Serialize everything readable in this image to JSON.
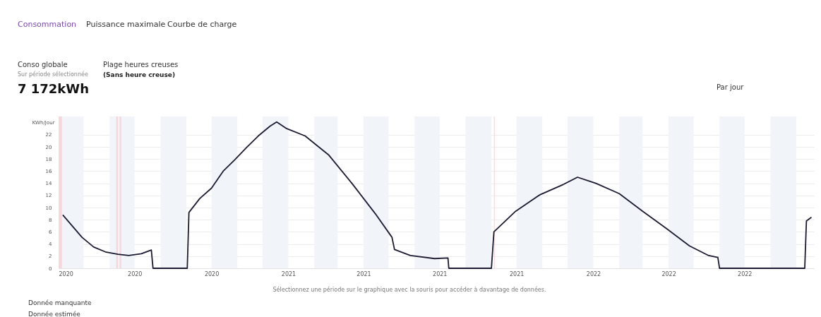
{
  "chart_data": {
    "type": "line",
    "ylabel": "KWh/Jour",
    "annotations": [
      "Consommation",
      "Puissance maximale",
      "Courbe de charge",
      "Conso globale",
      "Sur période sélectionnée",
      "7 172kWh",
      "Plage heures creuses",
      "(Sans heure creuse)",
      "Par jour",
      "Sélectionnez une période sur le graphique avec la souris pour accéder à davantage de données.",
      "Donnée manquante",
      "Donnée estimée"
    ],
    "x": [
      "2020-04-06",
      "2020-04-29",
      "2020-05-13",
      "2020-05-27",
      "2020-06-11",
      "2020-06-24",
      "2020-07-09",
      "2020-07-21",
      "2020-07-23",
      "2020-09-02",
      "2020-09-04",
      "2020-09-17",
      "2020-10-01",
      "2020-10-15",
      "2020-10-29",
      "2020-11-12",
      "2020-11-26",
      "2020-12-10",
      "2020-12-18",
      "2020-12-30",
      "2021-01-21",
      "2021-02-18",
      "2021-03-18",
      "2021-04-15",
      "2021-05-05",
      "2021-05-08",
      "2021-05-27",
      "2021-06-25",
      "2021-07-11",
      "2021-07-12",
      "2021-09-01",
      "2021-09-04",
      "2021-09-30",
      "2021-10-29",
      "2021-11-26",
      "2021-12-13",
      "2022-01-04",
      "2022-02-01",
      "2022-03-01",
      "2022-03-29",
      "2022-04-26",
      "2022-05-19",
      "2022-05-30",
      "2022-06-01",
      "2022-09-11",
      "2022-09-13",
      "2022-09-19"
    ],
    "series": [
      {
        "color": "#1c1b33",
        "values": [
          8.8,
          5.1,
          3.5,
          2.7,
          2.3,
          2.1,
          2.4,
          3.0,
          0,
          0,
          9.2,
          11.5,
          13.2,
          16,
          17.9,
          19.9,
          21.8,
          23.4,
          24.1,
          23.0,
          21.8,
          18.7,
          14.0,
          9.0,
          5.1,
          3.1,
          2.1,
          1.6,
          1.7,
          0,
          0,
          6.0,
          9.4,
          12.1,
          13.8,
          15.0,
          14.0,
          12.3,
          9.4,
          6.6,
          3.7,
          2.1,
          1.8,
          0,
          0,
          7.8,
          8.4
        ]
      }
    ],
    "xlim": [
      "2020-04-01",
      "2022-09-22"
    ],
    "xticks": [
      {
        "value": "2020-04-01",
        "label": "2020"
      },
      {
        "value": "2020-07-01",
        "label": "2020"
      },
      {
        "value": "2020-10-01",
        "label": "2020"
      },
      {
        "value": "2021-01-01",
        "label": "2021"
      },
      {
        "value": "2021-04-01",
        "label": "2021"
      },
      {
        "value": "2021-07-01",
        "label": "2021"
      },
      {
        "value": "2021-10-01",
        "label": "2021"
      },
      {
        "value": "2022-01-01",
        "label": "2022"
      },
      {
        "value": "2022-04-01",
        "label": "2022"
      },
      {
        "value": "2022-07-01",
        "label": "2022"
      }
    ],
    "ylim": [
      0,
      25
    ],
    "yticks": [
      0,
      2,
      4,
      6,
      8,
      10,
      12,
      14,
      16,
      18,
      20,
      22
    ],
    "grid": "y",
    "line_style": "solid",
    "marker": "none",
    "bands": [
      {
        "axis": "x",
        "from": "2020-04-01",
        "to": "2020-05-01",
        "color": "#f1f5f9"
      },
      {
        "axis": "x",
        "from": "2020-06-01",
        "to": "2020-07-01",
        "color": "#f1f5f9"
      },
      {
        "axis": "x",
        "from": "2020-08-01",
        "to": "2020-09-01",
        "color": "#f1f5f9"
      },
      {
        "axis": "x",
        "from": "2020-10-01",
        "to": "2020-11-01",
        "color": "#f1f5f9"
      },
      {
        "axis": "x",
        "from": "2020-12-01",
        "to": "2021-01-01",
        "color": "#f1f5f9"
      },
      {
        "axis": "x",
        "from": "2021-02-01",
        "to": "2021-03-01",
        "color": "#f1f5f9"
      },
      {
        "axis": "x",
        "from": "2021-04-01",
        "to": "2021-05-01",
        "color": "#f1f5f9"
      },
      {
        "axis": "x",
        "from": "2021-06-01",
        "to": "2021-07-01",
        "color": "#f1f5f9"
      },
      {
        "axis": "x",
        "from": "2021-08-01",
        "to": "2021-09-01",
        "color": "#f1f5f9"
      },
      {
        "axis": "x",
        "from": "2021-10-01",
        "to": "2021-11-01",
        "color": "#f1f5f9"
      },
      {
        "axis": "x",
        "from": "2021-12-01",
        "to": "2022-01-01",
        "color": "#f1f5f9"
      },
      {
        "axis": "x",
        "from": "2022-02-01",
        "to": "2022-03-01",
        "color": "#f1f5f9"
      },
      {
        "axis": "x",
        "from": "2022-04-01",
        "to": "2022-05-01",
        "color": "#f1f5f9"
      },
      {
        "axis": "x",
        "from": "2022-06-01",
        "to": "2022-07-01",
        "color": "#f1f5f9"
      },
      {
        "axis": "x",
        "from": "2022-08-01",
        "to": "2022-09-01",
        "color": "#f1f5f9"
      },
      {
        "axis": "x",
        "from": "2020-04-01",
        "to": "2020-04-05",
        "color": "#f7d7da"
      },
      {
        "axis": "x",
        "from": "2020-06-09",
        "to": "2020-06-11",
        "color": "#f7d7da"
      },
      {
        "axis": "x",
        "from": "2020-06-13",
        "to": "2020-06-15",
        "color": "#f7d7da"
      },
      {
        "axis": "x",
        "from": "2021-09-04",
        "to": "2021-09-05",
        "color": "#f7d7da"
      }
    ]
  }
}
